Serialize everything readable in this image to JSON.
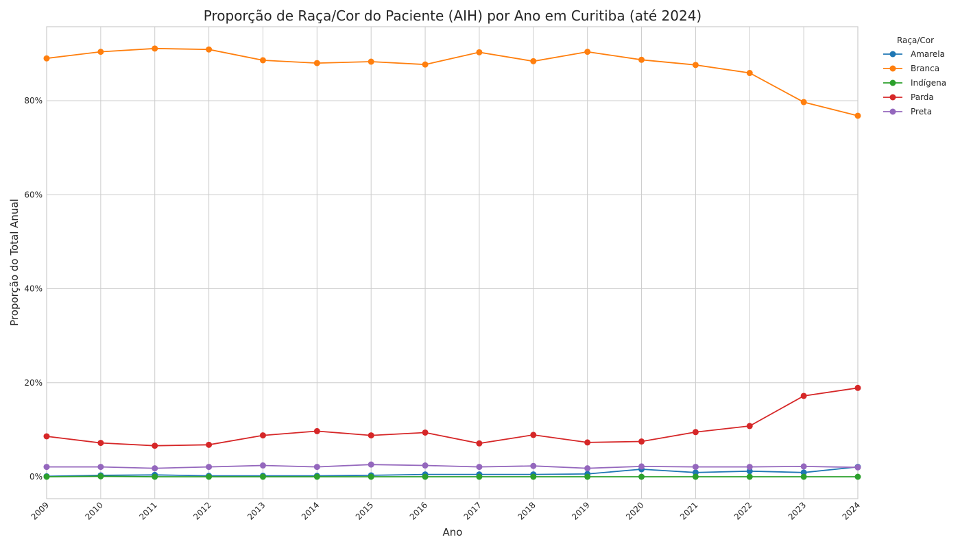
{
  "chart_data": {
    "type": "line",
    "title": "Proporção de Raça/Cor do Paciente (AIH) por Ano em Curitiba (até 2024)",
    "xlabel": "Ano",
    "ylabel": "Proporção do Total Anual",
    "x": [
      "2009",
      "2010",
      "2011",
      "2012",
      "2013",
      "2014",
      "2015",
      "2016",
      "2017",
      "2018",
      "2019",
      "2020",
      "2021",
      "2022",
      "2023",
      "2024"
    ],
    "yticks": [
      {
        "value": 0,
        "label": "0%"
      },
      {
        "value": 0.2,
        "label": "20%"
      },
      {
        "value": 0.4,
        "label": "40%"
      },
      {
        "value": 0.6,
        "label": "60%"
      },
      {
        "value": 0.8,
        "label": "80%"
      }
    ],
    "ylim": [
      -0.046,
      0.96
    ],
    "grid": true,
    "legend": {
      "title": "Raça/Cor",
      "position": "outside-top-right"
    },
    "series": [
      {
        "name": "Amarela",
        "color": "#1f77b4",
        "values": [
          0.001,
          0.003,
          0.004,
          0.002,
          0.002,
          0.002,
          0.003,
          0.005,
          0.005,
          0.005,
          0.006,
          0.016,
          0.009,
          0.012,
          0.009,
          0.021
        ]
      },
      {
        "name": "Branca",
        "color": "#ff7f0e",
        "values": [
          0.89,
          0.904,
          0.911,
          0.909,
          0.886,
          0.88,
          0.883,
          0.877,
          0.903,
          0.884,
          0.904,
          0.887,
          0.876,
          0.859,
          0.797,
          0.768
        ]
      },
      {
        "name": "Indígena",
        "color": "#2ca02c",
        "values": [
          0.0,
          0.001,
          0.0,
          0.0,
          0.0,
          0.0,
          0.0,
          0.0,
          0.0,
          0.0,
          0.0,
          0.0,
          0.0,
          0.0,
          0.0,
          0.0
        ]
      },
      {
        "name": "Parda",
        "color": "#d62728",
        "values": [
          0.086,
          0.072,
          0.066,
          0.068,
          0.088,
          0.097,
          0.088,
          0.094,
          0.071,
          0.089,
          0.073,
          0.075,
          0.095,
          0.108,
          0.172,
          0.189
        ]
      },
      {
        "name": "Preta",
        "color": "#9467bd",
        "values": [
          0.021,
          0.021,
          0.018,
          0.021,
          0.024,
          0.021,
          0.026,
          0.024,
          0.021,
          0.023,
          0.018,
          0.022,
          0.021,
          0.021,
          0.022,
          0.02
        ]
      }
    ]
  }
}
